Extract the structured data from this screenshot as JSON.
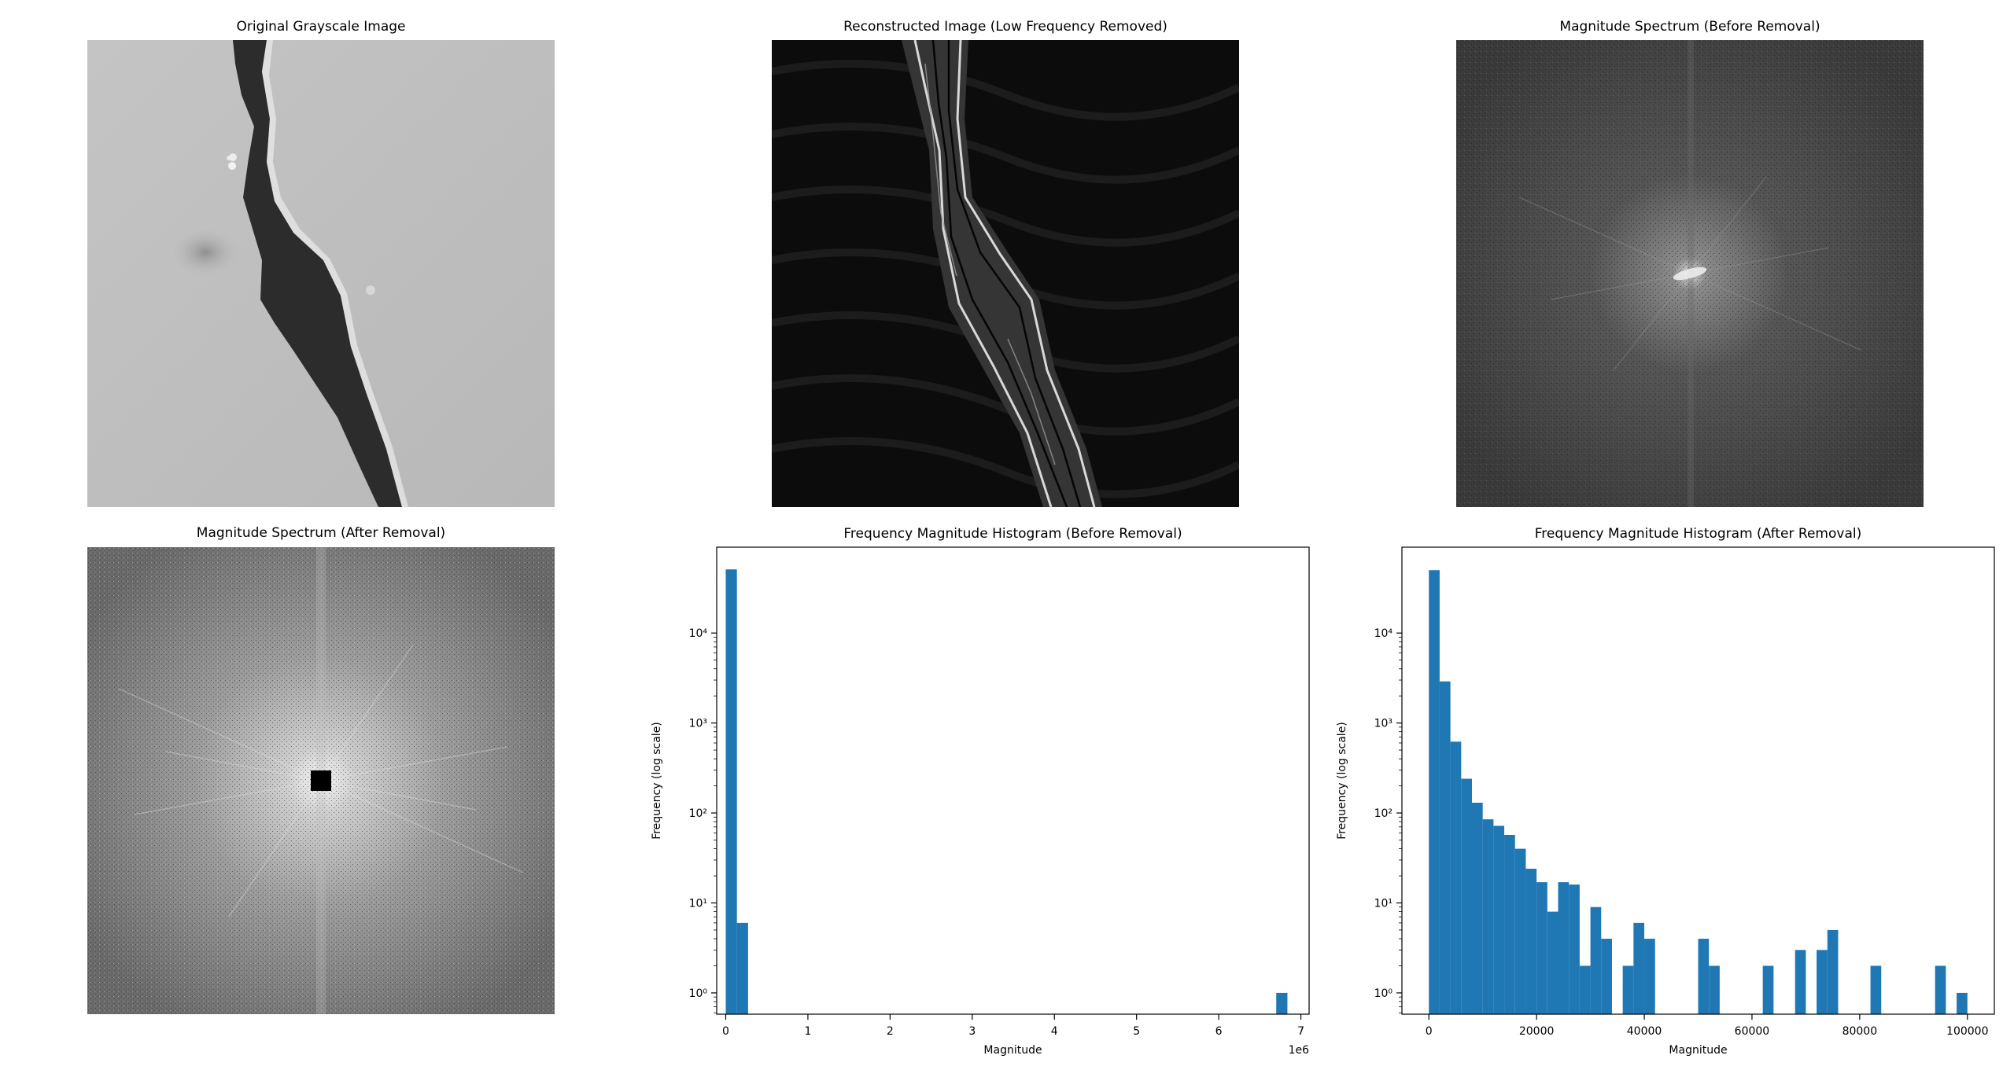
{
  "panels": {
    "original": {
      "title": "Original Grayscale Image"
    },
    "reconstructed": {
      "title": "Reconstructed Image (Low Frequency Removed)"
    },
    "spectrum_before": {
      "title": "Magnitude Spectrum (Before Removal)"
    },
    "spectrum_after": {
      "title": "Magnitude Spectrum (After Removal)"
    }
  },
  "colors": {
    "bar": "#1f77b4"
  },
  "chart_data": [
    {
      "type": "bar",
      "id": "hist_before",
      "title": "Frequency Magnitude Histogram (Before Removal)",
      "xlabel": "Magnitude",
      "ylabel": "Frequency (log scale)",
      "y_scale": "log",
      "x_offset_label": "1e6",
      "xlim": [
        -0.11,
        7.1
      ],
      "ylim": [
        0.58,
        90000
      ],
      "xticks": [
        0,
        1,
        2,
        3,
        4,
        5,
        6,
        7
      ],
      "yticks": [
        1,
        10,
        100,
        1000,
        10000
      ],
      "ytick_labels": [
        "10⁰",
        "10¹",
        "10²",
        "10³",
        "10⁴"
      ],
      "bin_width": 0.136,
      "bins": [
        {
          "x": 0.0,
          "count": 51000
        },
        {
          "x": 0.136,
          "count": 6
        },
        {
          "x": 6.7,
          "count": 1
        }
      ]
    },
    {
      "type": "bar",
      "id": "hist_after",
      "title": "Frequency Magnitude Histogram (After Removal)",
      "xlabel": "Magnitude",
      "ylabel": "Frequency (log scale)",
      "y_scale": "log",
      "xlim": [
        -5000,
        105000
      ],
      "ylim": [
        0.58,
        90000
      ],
      "xticks": [
        0,
        20000,
        40000,
        60000,
        80000,
        100000
      ],
      "yticks": [
        1,
        10,
        100,
        1000,
        10000
      ],
      "ytick_labels": [
        "10⁰",
        "10¹",
        "10²",
        "10³",
        "10⁴"
      ],
      "bin_width": 2000,
      "bins": [
        {
          "x": 0,
          "count": 50000
        },
        {
          "x": 2000,
          "count": 2900
        },
        {
          "x": 4000,
          "count": 620
        },
        {
          "x": 6000,
          "count": 240
        },
        {
          "x": 8000,
          "count": 130
        },
        {
          "x": 10000,
          "count": 85
        },
        {
          "x": 12000,
          "count": 72
        },
        {
          "x": 14000,
          "count": 57
        },
        {
          "x": 16000,
          "count": 40
        },
        {
          "x": 18000,
          "count": 24
        },
        {
          "x": 20000,
          "count": 17
        },
        {
          "x": 22000,
          "count": 8
        },
        {
          "x": 24000,
          "count": 17
        },
        {
          "x": 26000,
          "count": 16
        },
        {
          "x": 28000,
          "count": 2
        },
        {
          "x": 30000,
          "count": 9
        },
        {
          "x": 32000,
          "count": 4
        },
        {
          "x": 36000,
          "count": 2
        },
        {
          "x": 38000,
          "count": 6
        },
        {
          "x": 40000,
          "count": 4
        },
        {
          "x": 50000,
          "count": 4
        },
        {
          "x": 52000,
          "count": 2
        },
        {
          "x": 62000,
          "count": 2
        },
        {
          "x": 68000,
          "count": 3
        },
        {
          "x": 72000,
          "count": 3
        },
        {
          "x": 74000,
          "count": 5
        },
        {
          "x": 82000,
          "count": 2
        },
        {
          "x": 94000,
          "count": 2
        },
        {
          "x": 98000,
          "count": 1
        }
      ]
    }
  ]
}
